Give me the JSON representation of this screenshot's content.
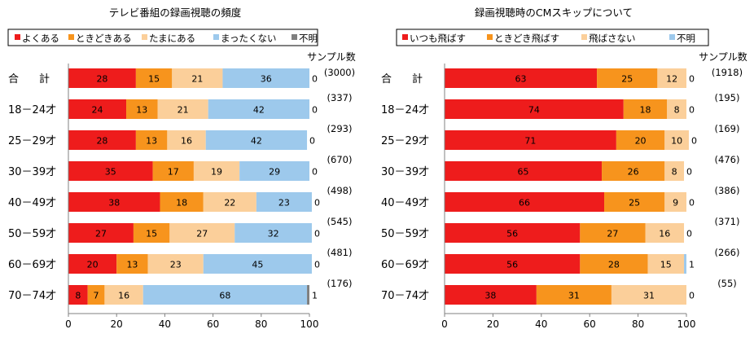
{
  "colors": {
    "red": "#ee1c1c",
    "orange": "#f7941d",
    "peach": "#fbcf9a",
    "lightblue": "#9dc9ec",
    "gray": "#7f7f7f",
    "axis": "#808080"
  },
  "chart_data": [
    {
      "type": "bar",
      "orientation": "horizontal",
      "stacked": true,
      "title": "テレビ番組の録画視聴の頻度",
      "legend_position": "top",
      "sample_header": "サンプル数",
      "categories": [
        "合　計",
        "18－24才",
        "25－29才",
        "30－39才",
        "40－49才",
        "50－59才",
        "60－69才",
        "70－74才"
      ],
      "sample_sizes": [
        "(3000)",
        "(337)",
        "(293)",
        "(670)",
        "(498)",
        "(545)",
        "(481)",
        "(176)"
      ],
      "xlim": [
        0,
        100
      ],
      "xticks": [
        0,
        20,
        40,
        60,
        80,
        100
      ],
      "grid": false,
      "series": [
        {
          "name": "よくある",
          "color": "red",
          "values": [
            28,
            24,
            28,
            35,
            38,
            27,
            20,
            8
          ]
        },
        {
          "name": "ときどきある",
          "color": "orange",
          "values": [
            15,
            13,
            13,
            17,
            18,
            15,
            13,
            7
          ]
        },
        {
          "name": "たまにある",
          "color": "peach",
          "values": [
            21,
            21,
            16,
            19,
            22,
            27,
            23,
            16
          ]
        },
        {
          "name": "まったくない",
          "color": "lightblue",
          "values": [
            36,
            42,
            42,
            29,
            23,
            32,
            45,
            68
          ]
        },
        {
          "name": "不明",
          "color": "gray",
          "values": [
            0,
            0,
            0,
            0,
            0,
            0,
            0,
            1
          ]
        }
      ]
    },
    {
      "type": "bar",
      "orientation": "horizontal",
      "stacked": true,
      "title": "録画視聴時のCMスキップについて",
      "legend_position": "top",
      "sample_header": "サンプル数",
      "categories": [
        "合　計",
        "18－24才",
        "25－29才",
        "30－39才",
        "40－49才",
        "50－59才",
        "60－69才",
        "70－74才"
      ],
      "sample_sizes": [
        "(1918)",
        "(195)",
        "(169)",
        "(476)",
        "(386)",
        "(371)",
        "(266)",
        "(55)"
      ],
      "xlim": [
        0,
        100
      ],
      "xticks": [
        0,
        20,
        40,
        60,
        80,
        100
      ],
      "grid": false,
      "series": [
        {
          "name": "いつも飛ばす",
          "color": "red",
          "values": [
            63,
            74,
            71,
            65,
            66,
            56,
            56,
            38
          ]
        },
        {
          "name": "ときどき飛ばす",
          "color": "orange",
          "values": [
            25,
            18,
            20,
            26,
            25,
            27,
            28,
            31
          ]
        },
        {
          "name": "飛ばさない",
          "color": "peach",
          "values": [
            12,
            8,
            10,
            8,
            9,
            16,
            15,
            31
          ]
        },
        {
          "name": "不明",
          "color": "lightblue",
          "values": [
            0,
            0,
            0,
            0,
            0,
            0,
            1,
            0
          ]
        }
      ]
    }
  ]
}
